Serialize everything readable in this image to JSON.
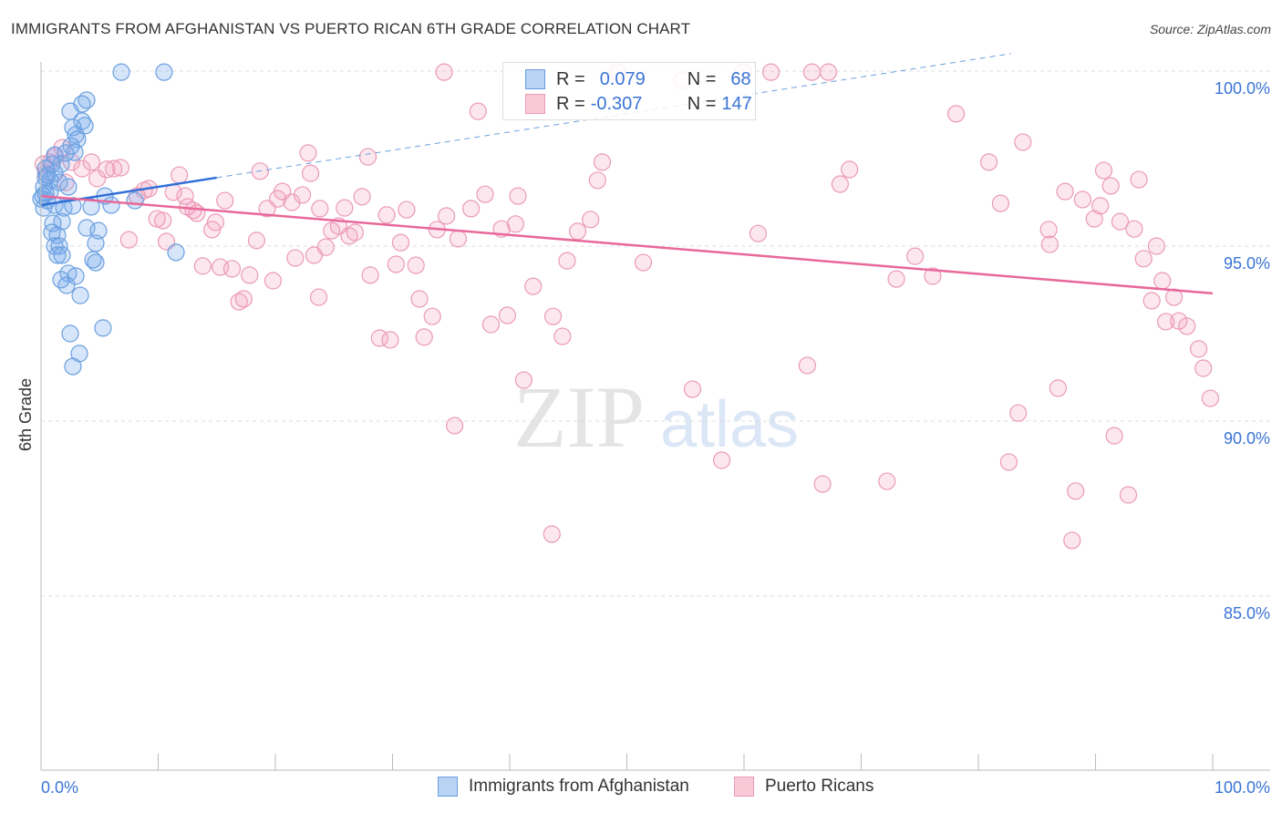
{
  "title": "IMMIGRANTS FROM AFGHANISTAN VS PUERTO RICAN 6TH GRADE CORRELATION CHART",
  "source": "Source: ZipAtlas.com",
  "watermark": "ZIPatlas",
  "legend": {
    "rows": [
      {
        "r_label": "R =",
        "r_value": "0.079",
        "n_label": "N =",
        "n_value": "68"
      },
      {
        "r_label": "R =",
        "r_value": "-0.307",
        "n_label": "N =",
        "n_value": "147"
      }
    ]
  },
  "chart_data": {
    "type": "scatter",
    "title": "IMMIGRANTS FROM AFGHANISTAN VS PUERTO RICAN 6TH GRADE CORRELATION CHART",
    "xlabel": "",
    "ylabel": "6th Grade",
    "xlim": [
      0,
      100
    ],
    "ylim": [
      80,
      100.5
    ],
    "x_tick_labels": [
      "0.0%",
      "100.0%"
    ],
    "y_ticks": [
      {
        "v": 100,
        "label": "100.0%"
      },
      {
        "v": 95,
        "label": "95.0%"
      },
      {
        "v": 90,
        "label": "90.0%"
      },
      {
        "v": 85,
        "label": "85.0%"
      }
    ],
    "grid": true,
    "legend_position": "bottom",
    "series": [
      {
        "name": "Immigrants from Afghanistan",
        "color": "#6a9fe0",
        "line_color": "#2f6fd6",
        "R": 0.079,
        "N": 68,
        "trend": {
          "y0": 96.17,
          "y100": 101.4,
          "solid_until": 15
        },
        "points": [
          [
            6.85,
            99.97
          ],
          [
            10.5,
            99.97
          ],
          [
            3.89,
            99.17
          ],
          [
            3.5,
            99.06
          ],
          [
            2.49,
            98.85
          ],
          [
            3.5,
            98.57
          ],
          [
            3.74,
            98.44
          ],
          [
            2.72,
            98.39
          ],
          [
            2.96,
            98.18
          ],
          [
            3.11,
            98.05
          ],
          [
            2.57,
            97.86
          ],
          [
            2.88,
            97.68
          ],
          [
            1.17,
            97.6
          ],
          [
            2.1,
            97.66
          ],
          [
            1.71,
            97.34
          ],
          [
            0.39,
            97.21
          ],
          [
            0.54,
            97.03
          ],
          [
            0.78,
            96.88
          ],
          [
            0.23,
            96.69
          ],
          [
            1.56,
            96.82
          ],
          [
            2.33,
            96.69
          ],
          [
            0.16,
            96.43
          ],
          [
            0.54,
            96.3
          ],
          [
            1.17,
            96.17
          ],
          [
            1.95,
            96.09
          ],
          [
            0.23,
            96.09
          ],
          [
            2.72,
            96.15
          ],
          [
            4.28,
            96.12
          ],
          [
            5.45,
            96.43
          ],
          [
            5.99,
            96.17
          ],
          [
            8.02,
            96.3
          ],
          [
            1.79,
            95.7
          ],
          [
            1.01,
            95.65
          ],
          [
            3.89,
            95.52
          ],
          [
            4.9,
            95.44
          ],
          [
            0.93,
            95.39
          ],
          [
            1.4,
            95.31
          ],
          [
            4.67,
            95.08
          ],
          [
            1.17,
            95.0
          ],
          [
            1.56,
            95.0
          ],
          [
            1.4,
            94.74
          ],
          [
            1.79,
            94.74
          ],
          [
            4.44,
            94.61
          ],
          [
            4.67,
            94.53
          ],
          [
            11.52,
            94.82
          ],
          [
            2.33,
            94.22
          ],
          [
            2.96,
            94.14
          ],
          [
            1.71,
            94.04
          ],
          [
            2.18,
            93.88
          ],
          [
            3.35,
            93.59
          ],
          [
            5.29,
            92.66
          ],
          [
            2.49,
            92.5
          ],
          [
            3.27,
            91.93
          ],
          [
            2.72,
            91.56
          ],
          [
            0.39,
            96.95
          ],
          [
            0.78,
            96.56
          ],
          [
            0.0,
            96.35
          ],
          [
            0.39,
            96.51
          ],
          [
            1.17,
            97.08
          ],
          [
            0.93,
            97.34
          ]
        ]
      },
      {
        "name": "Puerto Ricans",
        "color": "#eb9ab5",
        "line_color": "#e8689a",
        "R": -0.307,
        "N": 147,
        "trend": {
          "y0": 96.43,
          "y100": 93.65
        },
        "points": [
          [
            34.4,
            99.97
          ],
          [
            49.2,
            99.97
          ],
          [
            59.9,
            99.97
          ],
          [
            62.3,
            99.97
          ],
          [
            65.8,
            99.97
          ],
          [
            67.2,
            99.97
          ],
          [
            37.3,
            98.85
          ],
          [
            54.7,
            99.74
          ],
          [
            78.1,
            98.78
          ],
          [
            83.8,
            97.97
          ],
          [
            80.9,
            97.4
          ],
          [
            22.8,
            97.66
          ],
          [
            27.9,
            97.55
          ],
          [
            47.9,
            97.4
          ],
          [
            90.7,
            97.16
          ],
          [
            69.0,
            97.19
          ],
          [
            93.7,
            96.9
          ],
          [
            68.2,
            96.77
          ],
          [
            47.5,
            96.88
          ],
          [
            87.4,
            96.56
          ],
          [
            88.9,
            96.33
          ],
          [
            91.3,
            96.72
          ],
          [
            81.9,
            96.22
          ],
          [
            90.4,
            96.15
          ],
          [
            89.9,
            95.78
          ],
          [
            92.1,
            95.7
          ],
          [
            93.3,
            95.49
          ],
          [
            95.2,
            95.0
          ],
          [
            86.0,
            95.47
          ],
          [
            86.1,
            95.05
          ],
          [
            94.1,
            94.64
          ],
          [
            74.6,
            94.71
          ],
          [
            76.1,
            94.14
          ],
          [
            73.0,
            94.06
          ],
          [
            95.7,
            94.01
          ],
          [
            94.8,
            93.44
          ],
          [
            96.7,
            93.54
          ],
          [
            97.1,
            92.86
          ],
          [
            97.8,
            92.71
          ],
          [
            96.0,
            92.84
          ],
          [
            98.8,
            92.06
          ],
          [
            99.2,
            91.51
          ],
          [
            99.8,
            90.65
          ],
          [
            65.4,
            91.59
          ],
          [
            55.6,
            90.91
          ],
          [
            86.8,
            90.94
          ],
          [
            83.4,
            90.23
          ],
          [
            91.6,
            89.58
          ],
          [
            58.1,
            88.88
          ],
          [
            82.6,
            88.83
          ],
          [
            66.7,
            88.2
          ],
          [
            72.2,
            88.28
          ],
          [
            88.3,
            88.0
          ],
          [
            92.8,
            87.89
          ],
          [
            43.6,
            86.77
          ],
          [
            88.0,
            86.59
          ],
          [
            35.3,
            89.87
          ],
          [
            41.2,
            91.17
          ],
          [
            44.5,
            92.42
          ],
          [
            39.8,
            93.02
          ],
          [
            43.7,
            92.99
          ],
          [
            38.4,
            92.76
          ],
          [
            33.4,
            92.99
          ],
          [
            32.7,
            92.4
          ],
          [
            28.9,
            92.37
          ],
          [
            29.8,
            92.32
          ],
          [
            32.3,
            93.49
          ],
          [
            23.7,
            93.54
          ],
          [
            16.9,
            93.41
          ],
          [
            17.3,
            93.49
          ],
          [
            42.0,
            93.85
          ],
          [
            28.1,
            94.17
          ],
          [
            30.3,
            94.48
          ],
          [
            32.0,
            94.45
          ],
          [
            44.9,
            94.58
          ],
          [
            51.4,
            94.53
          ],
          [
            19.8,
            94.01
          ],
          [
            17.8,
            94.17
          ],
          [
            13.8,
            94.43
          ],
          [
            15.3,
            94.4
          ],
          [
            16.3,
            94.35
          ],
          [
            21.7,
            94.66
          ],
          [
            23.3,
            94.74
          ],
          [
            24.3,
            94.97
          ],
          [
            30.7,
            95.1
          ],
          [
            35.6,
            95.21
          ],
          [
            39.3,
            95.49
          ],
          [
            40.5,
            95.63
          ],
          [
            45.8,
            95.42
          ],
          [
            46.9,
            95.76
          ],
          [
            61.2,
            95.36
          ],
          [
            33.8,
            95.47
          ],
          [
            25.4,
            95.57
          ],
          [
            24.8,
            95.44
          ],
          [
            26.3,
            95.29
          ],
          [
            26.8,
            95.39
          ],
          [
            18.4,
            95.16
          ],
          [
            10.7,
            95.13
          ],
          [
            7.5,
            95.18
          ],
          [
            10.4,
            95.73
          ],
          [
            9.9,
            95.78
          ],
          [
            14.9,
            95.68
          ],
          [
            14.6,
            95.47
          ],
          [
            13.0,
            96.02
          ],
          [
            13.3,
            95.94
          ],
          [
            12.5,
            96.12
          ],
          [
            15.7,
            96.3
          ],
          [
            20.2,
            96.35
          ],
          [
            20.6,
            96.56
          ],
          [
            21.4,
            96.25
          ],
          [
            22.3,
            96.46
          ],
          [
            19.3,
            96.07
          ],
          [
            23.8,
            96.07
          ],
          [
            25.9,
            96.09
          ],
          [
            27.4,
            96.41
          ],
          [
            29.5,
            95.89
          ],
          [
            31.2,
            96.04
          ],
          [
            34.6,
            95.86
          ],
          [
            36.7,
            96.07
          ],
          [
            37.9,
            96.48
          ],
          [
            40.7,
            96.43
          ],
          [
            11.8,
            97.03
          ],
          [
            11.3,
            96.54
          ],
          [
            12.3,
            96.43
          ],
          [
            8.8,
            96.59
          ],
          [
            9.2,
            96.64
          ],
          [
            8.2,
            96.43
          ],
          [
            6.8,
            97.24
          ],
          [
            6.2,
            97.21
          ],
          [
            5.6,
            97.19
          ],
          [
            4.8,
            96.93
          ],
          [
            4.3,
            97.4
          ],
          [
            3.5,
            97.21
          ],
          [
            1.8,
            97.81
          ],
          [
            1.2,
            97.55
          ],
          [
            0.8,
            97.4
          ],
          [
            0.4,
            97.08
          ],
          [
            0.2,
            97.34
          ],
          [
            18.7,
            97.14
          ],
          [
            23.0,
            97.08
          ],
          [
            2.6,
            97.4
          ],
          [
            2.1,
            96.82
          ]
        ]
      }
    ]
  }
}
